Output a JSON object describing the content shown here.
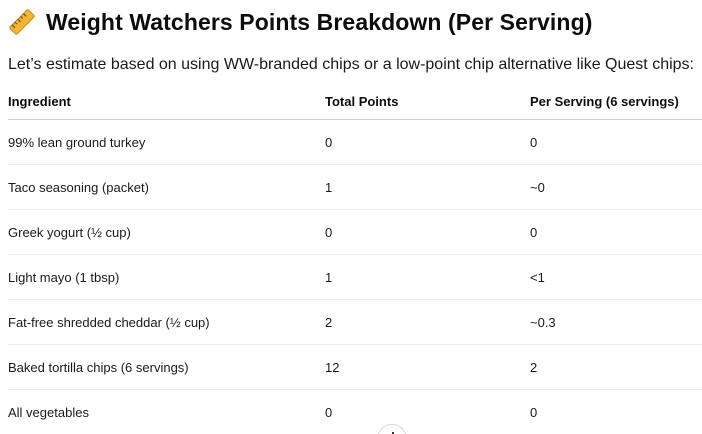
{
  "heading": {
    "icon": "ruler-icon",
    "title": "Weight Watchers Points Breakdown (Per Serving)"
  },
  "intro": "Let’s estimate based on using WW-branded chips or a low-point chip alternative like Quest chips:",
  "table": {
    "headers": [
      "Ingredient",
      "Total Points",
      "Per Serving (6 servings)"
    ],
    "rows": [
      [
        "99% lean ground turkey",
        "0",
        "0"
      ],
      [
        "Taco seasoning (packet)",
        "1",
        "~0"
      ],
      [
        "Greek yogurt (½ cup)",
        "0",
        "0"
      ],
      [
        "Light mayo (1 tbsp)",
        "1",
        "<1"
      ],
      [
        "Fat-free shredded cheddar (½ cup)",
        "2",
        "~0.3"
      ],
      [
        "Baked tortilla chips (6 servings)",
        "12",
        "2"
      ],
      [
        "All vegetables",
        "0",
        "0"
      ]
    ]
  },
  "scroll_button": {
    "icon": "scroll-down-icon"
  }
}
